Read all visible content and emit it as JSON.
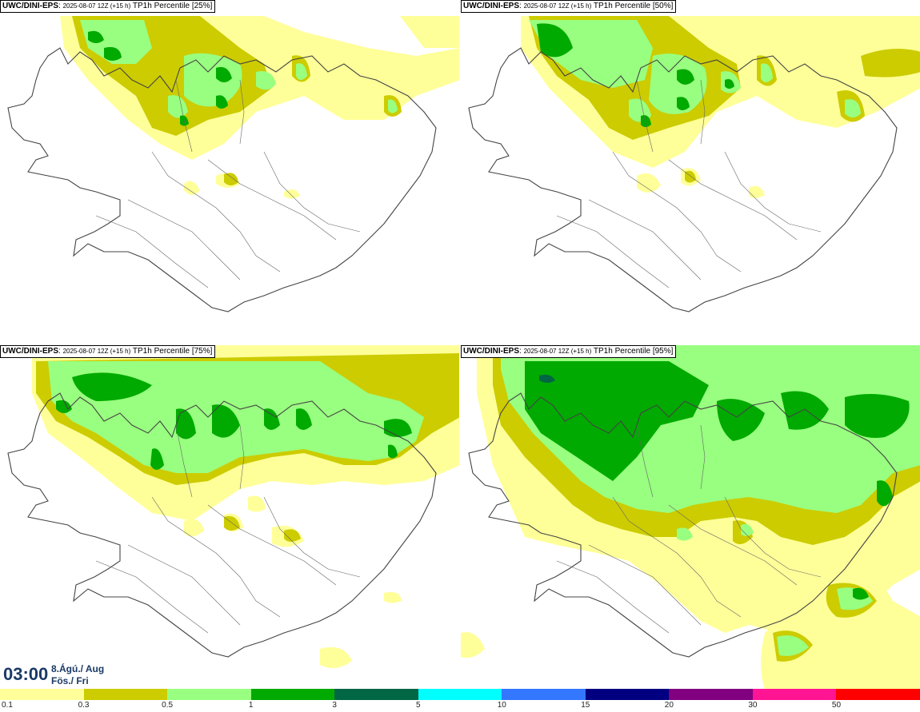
{
  "panels": [
    {
      "model": "UWC/DINI-EPS",
      "run": "2025-08-07 12Z (+15 h)",
      "field": "TP1h Percentile [25%]"
    },
    {
      "model": "UWC/DINI-EPS",
      "run": "2025-08-07 12Z (+15 h)",
      "field": "TP1h Percentile [50%]"
    },
    {
      "model": "UWC/DINI-EPS",
      "run": "2025-08-07 12Z (+15 h)",
      "field": "TP1h Percentile [75%]"
    },
    {
      "model": "UWC/DINI-EPS",
      "run": "2025-08-07 12Z (+15 h)",
      "field": "TP1h Percentile [95%]"
    }
  ],
  "valid_time": {
    "time": "03:00",
    "date": "8.Ágú./ Aug",
    "day": "Fös./ Fri"
  },
  "colorbar": {
    "colors": [
      "#ffff99",
      "#cccc00",
      "#99ff80",
      "#00aa00",
      "#006644",
      "#00ffff",
      "#3377ff",
      "#000080",
      "#800080",
      "#ff1493",
      "#ff0000"
    ],
    "tick_labels": [
      "0.1",
      "0.3",
      "0.5",
      "1",
      "3",
      "5",
      "10",
      "15",
      "20",
      "30",
      "50"
    ]
  },
  "palette": {
    "light_yellow": "#ffff99",
    "olive": "#cccc00",
    "light_green": "#99ff80",
    "green": "#00aa00",
    "dark_green": "#006644",
    "outline": "#444444"
  }
}
